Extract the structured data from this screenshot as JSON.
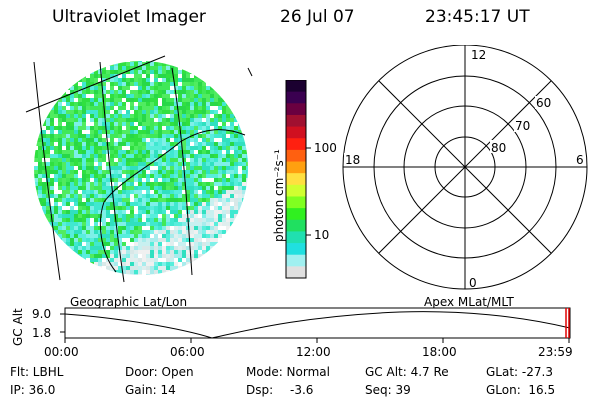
{
  "header": {
    "title": "Ultraviolet Imager",
    "date": "26 Jul 07",
    "time": "23:45:17 UT"
  },
  "colorbar": {
    "unit_label": "photon cm⁻²s⁻¹",
    "ticks": [
      "100",
      "10"
    ],
    "colors": [
      "#1b0030",
      "#3a0050",
      "#6a0040",
      "#a01030",
      "#d01020",
      "#ff2010",
      "#ff6010",
      "#ffa010",
      "#ffe040",
      "#d0ff30",
      "#80ff20",
      "#30f020",
      "#20e060",
      "#20e0b0",
      "#20e0e0",
      "#a0f0f0",
      "#e0e0e0"
    ]
  },
  "polar_plot": {
    "mlt_labels": {
      "top": "12",
      "bottom": "0",
      "left": "18",
      "right": "6"
    },
    "lat_labels": [
      "60",
      "70",
      "80"
    ]
  },
  "labels": {
    "geographic": "Geographic Lat/Lon",
    "apex": "Apex MLat/MLT"
  },
  "altitude_panel": {
    "ylabel": "GC Alt",
    "yticks": [
      "9.0",
      "1.8"
    ],
    "xticks": [
      "00:00",
      "06:00",
      "12:00",
      "18:00",
      "23:59"
    ],
    "marker_color": "#e00000"
  },
  "info": {
    "flt": "Flt: LBHL",
    "ip": "IP: 36.0",
    "door": "Door: Open",
    "gain": "Gain: 14",
    "mode": "Mode: Normal",
    "dsp_label": "Dsp:",
    "dsp_value": "-3.6",
    "gcalt": "GC Alt: 4.7 Re",
    "seq": "Seq: 39",
    "glat": "GLat: -27.3",
    "glon": "GLon:  16.5"
  }
}
